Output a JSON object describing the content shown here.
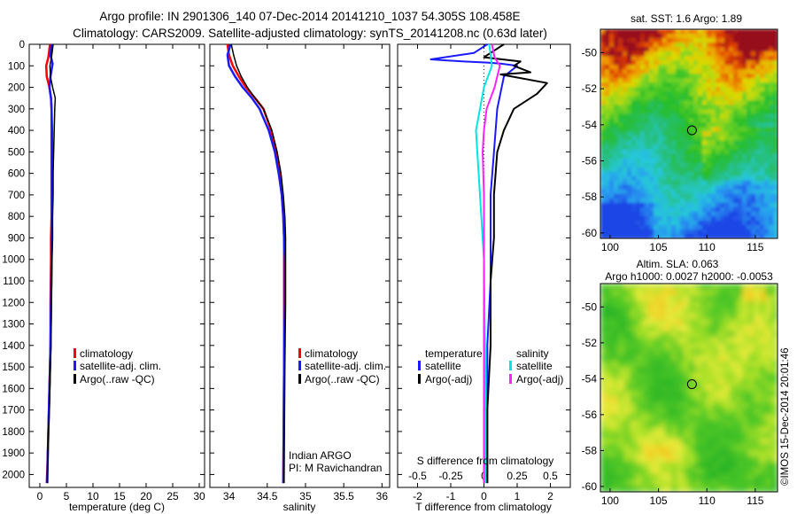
{
  "header": {
    "line1": "Argo profile: IN 2901306_140 07-Dec-2014 20141210_1037 54.305S 108.458E",
    "line2": "Climatology: CARS2009. Satellite-adjusted climatology: synTS_20141208.nc (0.63d later)"
  },
  "colors": {
    "climatology": "#ff0000",
    "satellite": "#1a1aff",
    "argo": "#000000",
    "satellite_salinity": "#00e5e5",
    "argo_salinity": "#ff22ff"
  },
  "chart_data": [
    {
      "id": "temperature",
      "type": "line",
      "xlabel": "temperature (deg C)",
      "ylabel": "",
      "xlim": [
        -2,
        31
      ],
      "ylim": [
        2060,
        0
      ],
      "xticks": [
        0,
        5,
        10,
        15,
        20,
        25,
        30
      ],
      "xtick_labels": [
        "0",
        "5",
        "10",
        "15",
        "20",
        "25",
        "30"
      ],
      "yticks": [
        0,
        100,
        200,
        300,
        400,
        500,
        600,
        700,
        800,
        900,
        1000,
        1100,
        1200,
        1300,
        1400,
        1500,
        1600,
        1700,
        1800,
        1900,
        2000
      ],
      "ytick_labels": [
        "0",
        "100",
        "200",
        "300",
        "400",
        "500",
        "600",
        "700",
        "800",
        "900",
        "1000",
        "1100",
        "1200",
        "1300",
        "1400",
        "1500",
        "1600",
        "1700",
        "1800",
        "1900",
        "2000"
      ],
      "legend": [
        "climatology",
        "satellite-adj. clim.",
        "Argo(..raw -QC)"
      ],
      "series": [
        {
          "name": "climatology",
          "color": "#ff0000",
          "width": 2.5,
          "x": [
            1.9,
            1.6,
            1.2,
            1.3,
            1.8,
            2.1,
            2.2,
            2.2,
            2.2,
            2.2,
            2.2,
            2.2,
            2.1,
            2.1,
            2.0,
            2.0,
            1.9,
            1.8,
            1.7,
            1.6,
            1.5,
            1.3
          ],
          "y": [
            0,
            60,
            100,
            150,
            200,
            250,
            300,
            400,
            500,
            600,
            700,
            800,
            900,
            1000,
            1200,
            1400,
            1500,
            1600,
            1700,
            1800,
            1900,
            2040
          ]
        },
        {
          "name": "satellite-adj. clim.",
          "color": "#1a1aff",
          "width": 2.5,
          "x": [
            2.2,
            2.0,
            2.4,
            2.0,
            1.8,
            2.1,
            2.2,
            2.3,
            2.3,
            2.3,
            2.3,
            2.3,
            2.2,
            2.2,
            2.1,
            2.0,
            1.9,
            1.8,
            1.7,
            1.6,
            1.5,
            1.4
          ],
          "y": [
            0,
            50,
            90,
            150,
            200,
            250,
            300,
            400,
            500,
            600,
            700,
            800,
            900,
            1000,
            1200,
            1400,
            1500,
            1600,
            1700,
            1800,
            1900,
            2040
          ]
        },
        {
          "name": "Argo(..raw -QC)",
          "color": "#000000",
          "width": 1.5,
          "x": [
            2.5,
            2.2,
            1.9,
            2.0,
            2.4,
            2.9,
            2.8,
            2.7,
            2.6,
            2.5,
            2.5,
            2.4,
            2.4,
            2.3,
            2.2,
            2.1,
            2.0,
            1.9,
            1.8,
            1.6,
            1.5,
            1.4
          ],
          "y": [
            0,
            60,
            100,
            150,
            200,
            250,
            300,
            400,
            500,
            600,
            700,
            800,
            900,
            1000,
            1200,
            1400,
            1500,
            1600,
            1700,
            1800,
            1900,
            2040
          ]
        }
      ]
    },
    {
      "id": "salinity",
      "type": "line",
      "xlabel": "salinity",
      "ylabel": "",
      "xlim": [
        33.75,
        36.1
      ],
      "ylim": [
        2060,
        0
      ],
      "xticks": [
        34,
        34.5,
        35,
        35.5,
        36
      ],
      "xtick_labels": [
        "34",
        "34.5",
        "35",
        "35.5",
        "36"
      ],
      "legend": [
        "climatology",
        "satellite-adj. clim.",
        "Argo(..raw -QC)"
      ],
      "annotation": [
        "Indian ARGO",
        "PI: M Ravichandran"
      ],
      "series": [
        {
          "name": "climatology",
          "color": "#ff0000",
          "width": 2.5,
          "x": [
            33.98,
            34.0,
            34.05,
            34.13,
            34.22,
            34.34,
            34.45,
            34.55,
            34.62,
            34.66,
            34.69,
            34.71,
            34.72,
            34.72,
            34.72,
            34.72,
            34.71
          ],
          "y": [
            0,
            50,
            100,
            150,
            200,
            250,
            300,
            400,
            500,
            600,
            700,
            800,
            900,
            1000,
            1200,
            1500,
            2040
          ]
        },
        {
          "name": "satellite-adj. clim.",
          "color": "#1a1aff",
          "width": 2.5,
          "x": [
            34.02,
            33.98,
            34.0,
            34.08,
            34.18,
            34.3,
            34.4,
            34.52,
            34.6,
            34.65,
            34.69,
            34.71,
            34.72,
            34.73,
            34.73,
            34.72,
            34.71
          ],
          "y": [
            0,
            50,
            100,
            150,
            200,
            250,
            300,
            400,
            500,
            600,
            700,
            800,
            900,
            1000,
            1200,
            1500,
            2040
          ]
        },
        {
          "name": "Argo(..raw -QC)",
          "color": "#000000",
          "width": 1.5,
          "x": [
            34.03,
            34.06,
            34.1,
            34.16,
            34.24,
            34.34,
            34.45,
            34.56,
            34.63,
            34.68,
            34.71,
            34.73,
            34.74,
            34.74,
            34.74,
            34.73,
            34.72
          ],
          "y": [
            0,
            50,
            100,
            150,
            200,
            250,
            300,
            400,
            500,
            600,
            700,
            800,
            900,
            1000,
            1200,
            1500,
            2040
          ]
        }
      ]
    },
    {
      "id": "difference",
      "type": "line",
      "xlabel": "T difference from climatology",
      "x2label": "S difference from climatology",
      "xlim": [
        -2.6,
        2.6
      ],
      "ylim": [
        2060,
        0
      ],
      "xticks": [
        -2,
        -1,
        0,
        1,
        2
      ],
      "xtick_labels": [
        "-2",
        "-1",
        "0",
        "1",
        "2"
      ],
      "x2ticks": [
        -0.5,
        -0.25,
        0,
        0.25,
        0.5
      ],
      "x2tick_labels": [
        "-0.5",
        "-0.25",
        "0",
        "0.25",
        "0.5"
      ],
      "x2lim": [
        -0.65,
        0.65
      ],
      "legend_headers": [
        "temperature",
        "salinity"
      ],
      "legend_temperature": [
        "satellite",
        "Argo(-adj)"
      ],
      "legend_salinity": [
        "satellite",
        "Argo(-adj)"
      ],
      "series": [
        {
          "name": "satellite",
          "group": "temperature",
          "color": "#1a1aff",
          "width": 2,
          "x": [
            0.1,
            -0.3,
            -1.6,
            -0.6,
            0.1,
            0.5,
            1.0,
            0.6,
            0.4,
            0.3,
            0.2,
            0.2,
            0.2,
            0.1,
            0.1,
            0.1,
            0.1
          ],
          "y": [
            0,
            40,
            70,
            80,
            85,
            90,
            100,
            150,
            300,
            500,
            700,
            900,
            1100,
            1400,
            1700,
            1900,
            2040
          ]
        },
        {
          "name": "Argo(-adj)",
          "group": "temperature",
          "color": "#000000",
          "width": 2,
          "x": [
            0.6,
            0.2,
            0.0,
            1.1,
            0.9,
            1.4,
            0.5,
            1.9,
            1.6,
            0.9,
            0.6,
            0.4,
            0.3,
            0.3,
            0.2,
            0.2,
            0.1,
            0.1,
            0.1
          ],
          "y": [
            0,
            40,
            60,
            80,
            100,
            130,
            140,
            180,
            230,
            300,
            400,
            500,
            700,
            900,
            1100,
            1400,
            1700,
            1900,
            2040
          ]
        },
        {
          "name": "satellite",
          "group": "salinity",
          "color": "#00e5e5",
          "width": 2,
          "x": [
            0.04,
            0.06,
            0.0,
            -0.03,
            -0.06,
            -0.05,
            -0.04,
            -0.03,
            -0.02,
            -0.01,
            0.0,
            0.01,
            0.01
          ],
          "y": [
            0,
            100,
            200,
            300,
            400,
            500,
            600,
            700,
            800,
            900,
            1000,
            1500,
            2040
          ]
        },
        {
          "name": "Argo(-adj)",
          "group": "salinity",
          "color": "#ff22ff",
          "width": 2,
          "x": [
            0.06,
            0.08,
            0.12,
            0.08,
            0.02,
            0.0,
            -0.01,
            0.0,
            0.0,
            0.0,
            0.0,
            0.0,
            0.0
          ],
          "y": [
            0,
            60,
            100,
            200,
            300,
            400,
            500,
            700,
            900,
            1100,
            1400,
            1700,
            2040
          ]
        }
      ]
    },
    {
      "id": "sst_map",
      "type": "heatmap",
      "title": "sat. SST: 1.6 Argo: 1.89",
      "xticks": [
        100,
        105,
        110,
        115
      ],
      "xtick_labels": [
        "100",
        "105",
        "110",
        "115"
      ],
      "yticks": [
        -50,
        -52,
        -54,
        -56,
        -58,
        -60
      ],
      "ytick_labels": [
        "-50",
        "-52",
        "-54",
        "-56",
        "-58",
        "-60"
      ],
      "xlim": [
        99,
        117.3
      ],
      "ylim": [
        -60.3,
        -48.7
      ],
      "marker": {
        "lon": 108.458,
        "lat": -54.305
      }
    },
    {
      "id": "sla_map",
      "type": "heatmap",
      "title": "Altim. SLA: 0.063",
      "subtitle": "Argo h1000: 0.0027 h2000: -0.0053",
      "xticks": [
        100,
        105,
        110,
        115
      ],
      "xtick_labels": [
        "100",
        "105",
        "110",
        "115"
      ],
      "yticks": [
        -50,
        -52,
        -54,
        -56,
        -58,
        -60
      ],
      "ytick_labels": [
        "-50",
        "-52",
        "-54",
        "-56",
        "-58",
        "-60"
      ],
      "xlim": [
        99,
        117.3
      ],
      "ylim": [
        -60.3,
        -48.7
      ],
      "marker": {
        "lon": 108.458,
        "lat": -54.305
      }
    }
  ],
  "footer": {
    "credit": "©IMOS 15-Dec-2014 20:01:46"
  }
}
